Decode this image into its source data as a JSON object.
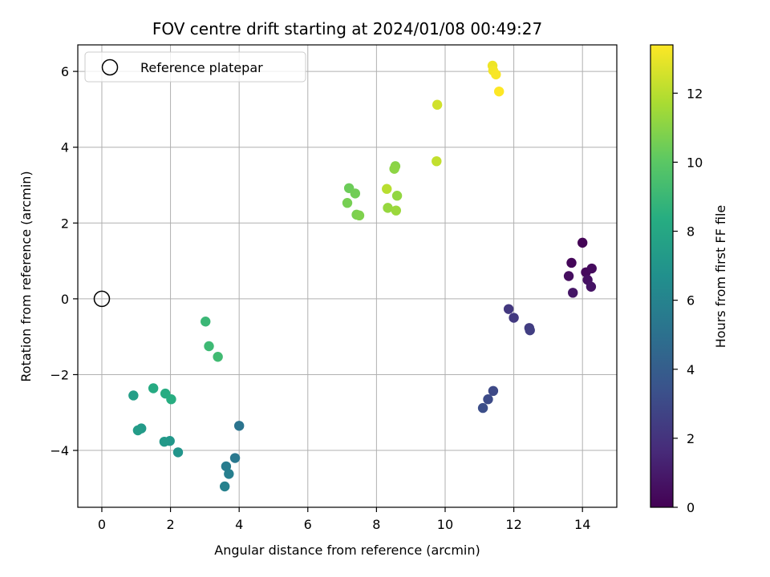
{
  "chart_data": {
    "type": "scatter",
    "title": "FOV centre drift starting at 2024/01/08 00:49:27",
    "xlabel": "Angular distance from reference (arcmin)",
    "ylabel": "Rotation from reference (arcmin)",
    "xlim": [
      -0.7,
      15.0
    ],
    "ylim": [
      -5.5,
      6.7
    ],
    "xticks": [
      0,
      2,
      4,
      6,
      8,
      10,
      12,
      14
    ],
    "yticks": [
      -4,
      -2,
      0,
      2,
      4,
      6
    ],
    "xtick_labels": [
      "0",
      "2",
      "4",
      "6",
      "8",
      "10",
      "12",
      "14"
    ],
    "ytick_labels": [
      "−4",
      "−2",
      "0",
      "2",
      "4",
      "6"
    ],
    "grid": true,
    "legend": {
      "position": "top-left",
      "entries": [
        "Reference platepar"
      ]
    },
    "reference_point": {
      "x": 0,
      "y": 0
    },
    "colorbar": {
      "label": "Hours from first FF file",
      "range": [
        0,
        13.4
      ],
      "ticks": [
        0,
        2,
        4,
        6,
        8,
        10,
        12
      ],
      "tick_labels": [
        "0",
        "2",
        "4",
        "6",
        "8",
        "10",
        "12"
      ],
      "colormap": "viridis"
    },
    "points": [
      {
        "x": 14.0,
        "y": 1.48,
        "c": 0.1
      },
      {
        "x": 13.68,
        "y": 0.95,
        "c": 0.2
      },
      {
        "x": 14.1,
        "y": 0.7,
        "c": 0.3
      },
      {
        "x": 14.27,
        "y": 0.8,
        "c": 0.4
      },
      {
        "x": 13.6,
        "y": 0.6,
        "c": 0.5
      },
      {
        "x": 14.15,
        "y": 0.5,
        "c": 0.6
      },
      {
        "x": 14.25,
        "y": 0.32,
        "c": 0.7
      },
      {
        "x": 13.72,
        "y": 0.16,
        "c": 0.8
      },
      {
        "x": 11.85,
        "y": -0.27,
        "c": 2.2
      },
      {
        "x": 12.0,
        "y": -0.5,
        "c": 2.3
      },
      {
        "x": 12.45,
        "y": -0.77,
        "c": 2.4
      },
      {
        "x": 12.47,
        "y": -0.83,
        "c": 2.5
      },
      {
        "x": 11.4,
        "y": -2.43,
        "c": 3.0
      },
      {
        "x": 11.25,
        "y": -2.65,
        "c": 3.1
      },
      {
        "x": 11.1,
        "y": -2.88,
        "c": 3.2
      },
      {
        "x": 4.0,
        "y": -3.35,
        "c": 5.2
      },
      {
        "x": 3.88,
        "y": -4.2,
        "c": 5.4
      },
      {
        "x": 3.62,
        "y": -4.42,
        "c": 5.6
      },
      {
        "x": 3.7,
        "y": -4.62,
        "c": 5.8
      },
      {
        "x": 3.58,
        "y": -4.95,
        "c": 5.9
      },
      {
        "x": 2.22,
        "y": -4.05,
        "c": 7.0
      },
      {
        "x": 1.98,
        "y": -3.75,
        "c": 7.1
      },
      {
        "x": 1.82,
        "y": -3.77,
        "c": 7.2
      },
      {
        "x": 1.15,
        "y": -3.42,
        "c": 7.3
      },
      {
        "x": 1.05,
        "y": -3.47,
        "c": 7.4
      },
      {
        "x": 0.92,
        "y": -2.55,
        "c": 7.5
      },
      {
        "x": 1.5,
        "y": -2.36,
        "c": 8.2
      },
      {
        "x": 1.85,
        "y": -2.5,
        "c": 8.3
      },
      {
        "x": 2.02,
        "y": -2.65,
        "c": 8.4
      },
      {
        "x": 3.02,
        "y": -0.6,
        "c": 9.0
      },
      {
        "x": 3.12,
        "y": -1.25,
        "c": 9.1
      },
      {
        "x": 3.38,
        "y": -1.53,
        "c": 9.2
      },
      {
        "x": 7.2,
        "y": 2.92,
        "c": 10.4
      },
      {
        "x": 7.38,
        "y": 2.78,
        "c": 10.5
      },
      {
        "x": 7.15,
        "y": 2.53,
        "c": 10.6
      },
      {
        "x": 7.42,
        "y": 2.22,
        "c": 10.7
      },
      {
        "x": 7.5,
        "y": 2.2,
        "c": 10.8
      },
      {
        "x": 8.55,
        "y": 3.5,
        "c": 11.0
      },
      {
        "x": 8.52,
        "y": 3.43,
        "c": 11.1
      },
      {
        "x": 8.6,
        "y": 2.72,
        "c": 11.2
      },
      {
        "x": 8.33,
        "y": 2.4,
        "c": 11.3
      },
      {
        "x": 8.57,
        "y": 2.33,
        "c": 11.4
      },
      {
        "x": 8.3,
        "y": 2.9,
        "c": 12.0
      },
      {
        "x": 9.75,
        "y": 3.63,
        "c": 12.2
      },
      {
        "x": 9.77,
        "y": 5.12,
        "c": 12.5
      },
      {
        "x": 11.38,
        "y": 6.15,
        "c": 13.1
      },
      {
        "x": 11.4,
        "y": 6.02,
        "c": 13.2
      },
      {
        "x": 11.48,
        "y": 5.92,
        "c": 13.3
      },
      {
        "x": 11.57,
        "y": 5.47,
        "c": 13.4
      }
    ]
  }
}
